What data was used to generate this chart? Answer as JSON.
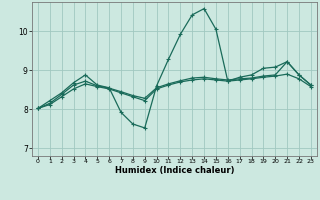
{
  "xlabel": "Humidex (Indice chaleur)",
  "xlim": [
    -0.5,
    23.5
  ],
  "ylim": [
    6.8,
    10.75
  ],
  "xticks": [
    0,
    1,
    2,
    3,
    4,
    5,
    6,
    7,
    8,
    9,
    10,
    11,
    12,
    13,
    14,
    15,
    16,
    17,
    18,
    19,
    20,
    21,
    22,
    23
  ],
  "yticks": [
    7,
    8,
    9,
    10
  ],
  "background_color": "#cce8e0",
  "grid_color": "#a0c8c0",
  "line_color": "#1a6b5a",
  "line1_x": [
    0,
    1,
    2,
    3,
    4,
    5,
    6,
    7,
    8,
    9,
    10,
    11,
    12,
    13,
    14,
    15,
    16,
    17,
    18,
    19,
    20,
    21,
    22,
    23
  ],
  "line1_y": [
    8.02,
    8.22,
    8.42,
    8.68,
    8.88,
    8.62,
    8.55,
    7.92,
    7.62,
    7.52,
    8.6,
    9.28,
    9.92,
    10.42,
    10.58,
    10.05,
    8.72,
    8.82,
    8.88,
    9.05,
    9.08,
    9.22,
    8.88,
    8.62
  ],
  "line2_x": [
    0,
    1,
    2,
    3,
    4,
    5,
    6,
    7,
    8,
    9,
    10,
    11,
    12,
    13,
    14,
    15,
    16,
    17,
    18,
    19,
    20,
    21,
    22,
    23
  ],
  "line2_y": [
    8.02,
    8.12,
    8.32,
    8.52,
    8.65,
    8.58,
    8.52,
    8.42,
    8.32,
    8.22,
    8.52,
    8.62,
    8.7,
    8.75,
    8.78,
    8.75,
    8.72,
    8.75,
    8.78,
    8.82,
    8.85,
    8.9,
    8.78,
    8.58
  ],
  "line3_x": [
    0,
    1,
    2,
    3,
    4,
    5,
    6,
    7,
    8,
    9,
    10,
    11,
    12,
    13,
    14,
    15,
    16,
    17,
    18,
    19,
    20,
    21,
    22,
    23
  ],
  "line3_y": [
    8.02,
    8.15,
    8.38,
    8.62,
    8.72,
    8.6,
    8.54,
    8.45,
    8.35,
    8.28,
    8.55,
    8.65,
    8.73,
    8.8,
    8.82,
    8.78,
    8.75,
    8.78,
    8.8,
    8.85,
    8.88,
    9.22,
    8.88,
    8.62
  ]
}
